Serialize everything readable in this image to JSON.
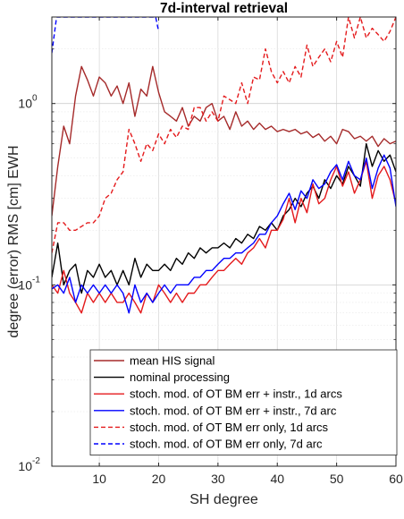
{
  "chart_data": {
    "type": "line",
    "title": "7d-interval retrieval",
    "xlabel": "SH degree",
    "ylabel": "degree (error) RMS [cm] EWH",
    "xlim": [
      2,
      60
    ],
    "ylim": [
      0.01,
      3
    ],
    "yscale": "log",
    "grid": true,
    "legend_position": "bottom-center",
    "x_ticks": [
      10,
      20,
      30,
      40,
      50,
      60
    ],
    "x_tick_labels": [
      "10",
      "20",
      "30",
      "40",
      "50",
      "60"
    ],
    "y_ticks": [
      0.01,
      0.1,
      1
    ],
    "y_tick_labels": [
      "10",
      "10",
      "10"
    ],
    "y_tick_exponents": [
      "-2",
      "-1",
      "0"
    ],
    "series": [
      {
        "name": "mean HIS signal",
        "color": "#a52a2a",
        "dash": "solid",
        "x": [
          2,
          3,
          4,
          5,
          6,
          7,
          8,
          9,
          10,
          11,
          12,
          13,
          14,
          15,
          16,
          17,
          18,
          19,
          20,
          21,
          22,
          23,
          24,
          25,
          26,
          27,
          28,
          29,
          30,
          31,
          32,
          33,
          34,
          35,
          36,
          37,
          38,
          39,
          40,
          41,
          42,
          43,
          44,
          45,
          46,
          47,
          48,
          49,
          50,
          51,
          52,
          53,
          54,
          55,
          56,
          57,
          58,
          59,
          60
        ],
        "y": [
          0.24,
          0.45,
          0.75,
          0.6,
          1.1,
          1.6,
          1.35,
          1.1,
          1.4,
          1.3,
          1.1,
          1.25,
          1.0,
          1.3,
          0.85,
          1.2,
          1.1,
          1.6,
          1.15,
          0.9,
          0.85,
          0.8,
          0.95,
          0.75,
          0.85,
          0.8,
          0.95,
          1.0,
          0.8,
          0.85,
          0.72,
          0.9,
          0.75,
          0.8,
          0.72,
          0.78,
          0.72,
          0.75,
          0.7,
          0.72,
          0.7,
          0.72,
          0.68,
          0.7,
          0.65,
          0.68,
          0.62,
          0.66,
          0.6,
          0.72,
          0.7,
          0.64,
          0.66,
          0.62,
          0.66,
          0.58,
          0.64,
          0.6,
          0.62
        ]
      },
      {
        "name": "nominal processing",
        "color": "#000000",
        "dash": "solid",
        "x": [
          2,
          3,
          4,
          5,
          6,
          7,
          8,
          9,
          10,
          11,
          12,
          13,
          14,
          15,
          16,
          17,
          18,
          19,
          20,
          21,
          22,
          23,
          24,
          25,
          26,
          27,
          28,
          29,
          30,
          31,
          32,
          33,
          34,
          35,
          36,
          37,
          38,
          39,
          40,
          41,
          42,
          43,
          44,
          45,
          46,
          47,
          48,
          49,
          50,
          51,
          52,
          53,
          54,
          55,
          56,
          57,
          58,
          59,
          60
        ],
        "y": [
          0.11,
          0.17,
          0.1,
          0.12,
          0.13,
          0.09,
          0.12,
          0.11,
          0.13,
          0.11,
          0.12,
          0.1,
          0.12,
          0.1,
          0.14,
          0.11,
          0.13,
          0.12,
          0.12,
          0.13,
          0.12,
          0.14,
          0.13,
          0.15,
          0.14,
          0.16,
          0.15,
          0.16,
          0.16,
          0.17,
          0.16,
          0.18,
          0.17,
          0.19,
          0.18,
          0.21,
          0.2,
          0.22,
          0.2,
          0.24,
          0.26,
          0.3,
          0.27,
          0.32,
          0.35,
          0.3,
          0.38,
          0.34,
          0.4,
          0.36,
          0.45,
          0.4,
          0.35,
          0.6,
          0.45,
          0.55,
          0.48,
          0.52,
          0.42
        ]
      },
      {
        "name": "stoch. mod. of OT BM err + instr., 1d arcs",
        "color": "#e41a1c",
        "dash": "solid",
        "x": [
          2,
          3,
          4,
          5,
          6,
          7,
          8,
          9,
          10,
          11,
          12,
          13,
          14,
          15,
          16,
          17,
          18,
          19,
          20,
          21,
          22,
          23,
          24,
          25,
          26,
          27,
          28,
          29,
          30,
          31,
          32,
          33,
          34,
          35,
          36,
          37,
          38,
          39,
          40,
          41,
          42,
          43,
          44,
          45,
          46,
          47,
          48,
          49,
          50,
          51,
          52,
          53,
          54,
          55,
          56,
          57,
          58,
          59,
          60
        ],
        "y": [
          0.1,
          0.09,
          0.12,
          0.09,
          0.08,
          0.07,
          0.09,
          0.08,
          0.09,
          0.08,
          0.09,
          0.08,
          0.08,
          0.09,
          0.08,
          0.07,
          0.09,
          0.08,
          0.1,
          0.09,
          0.08,
          0.09,
          0.08,
          0.09,
          0.09,
          0.1,
          0.1,
          0.11,
          0.12,
          0.12,
          0.13,
          0.14,
          0.13,
          0.15,
          0.16,
          0.18,
          0.16,
          0.2,
          0.2,
          0.23,
          0.3,
          0.22,
          0.3,
          0.25,
          0.36,
          0.28,
          0.3,
          0.38,
          0.45,
          0.35,
          0.42,
          0.32,
          0.38,
          0.48,
          0.3,
          0.4,
          0.45,
          0.38,
          0.28
        ]
      },
      {
        "name": "stoch. mod. of OT BM err + instr., 7d arc",
        "color": "#0000ff",
        "dash": "solid",
        "x": [
          2,
          3,
          4,
          5,
          6,
          7,
          8,
          9,
          10,
          11,
          12,
          13,
          14,
          15,
          16,
          17,
          18,
          19,
          20,
          21,
          22,
          23,
          24,
          25,
          26,
          27,
          28,
          29,
          30,
          31,
          32,
          33,
          34,
          35,
          36,
          37,
          38,
          39,
          40,
          41,
          42,
          43,
          44,
          45,
          46,
          47,
          48,
          49,
          50,
          51,
          52,
          53,
          54,
          55,
          56,
          57,
          58,
          59,
          60
        ],
        "y": [
          0.095,
          0.1,
          0.09,
          0.11,
          0.08,
          0.1,
          0.09,
          0.1,
          0.09,
          0.1,
          0.09,
          0.1,
          0.09,
          0.07,
          0.1,
          0.08,
          0.09,
          0.08,
          0.09,
          0.1,
          0.09,
          0.1,
          0.1,
          0.1,
          0.11,
          0.11,
          0.12,
          0.12,
          0.13,
          0.14,
          0.14,
          0.15,
          0.15,
          0.16,
          0.17,
          0.19,
          0.19,
          0.22,
          0.24,
          0.28,
          0.32,
          0.26,
          0.33,
          0.3,
          0.38,
          0.34,
          0.36,
          0.42,
          0.46,
          0.38,
          0.48,
          0.4,
          0.38,
          0.5,
          0.34,
          0.44,
          0.52,
          0.44,
          0.27
        ]
      },
      {
        "name": "stoch. mod. of OT BM err only, 1d arcs",
        "color": "#e41a1c",
        "dash": "dashed",
        "x": [
          2,
          3,
          4,
          5,
          6,
          7,
          8,
          9,
          10,
          11,
          12,
          13,
          14,
          15,
          16,
          17,
          18,
          19,
          20,
          21,
          22,
          23,
          24,
          25,
          26,
          27,
          28,
          29,
          30,
          31,
          32,
          33,
          34,
          35,
          36,
          37,
          38,
          39,
          40,
          41,
          42,
          43,
          44,
          45,
          46,
          47,
          48,
          49,
          50,
          51,
          52,
          53,
          54,
          55,
          56,
          57,
          58,
          59,
          60
        ],
        "y": [
          0.15,
          0.22,
          0.22,
          0.2,
          0.2,
          0.21,
          0.22,
          0.22,
          0.24,
          0.3,
          0.32,
          0.38,
          0.42,
          0.72,
          0.6,
          0.48,
          0.6,
          0.55,
          0.68,
          0.6,
          0.72,
          0.65,
          0.75,
          0.72,
          0.95,
          0.95,
          0.8,
          0.9,
          0.8,
          1.1,
          1.05,
          1.0,
          1.3,
          1.0,
          1.4,
          1.35,
          2.0,
          1.5,
          1.3,
          1.5,
          1.3,
          1.6,
          1.4,
          2.1,
          1.6,
          1.8,
          2.0,
          1.7,
          2.2,
          1.8,
          3.0,
          2.3,
          3.0,
          2.3,
          2.6,
          2.4,
          2.2,
          2.5,
          3.0
        ]
      },
      {
        "name": "stoch. mod. of OT BM err only, 7d arc",
        "color": "#0000ff",
        "dash": "dashed",
        "x": [
          2,
          2.8,
          19.5,
          20
        ],
        "y": [
          1.9,
          3.0,
          3.0,
          2.5
        ]
      }
    ]
  }
}
